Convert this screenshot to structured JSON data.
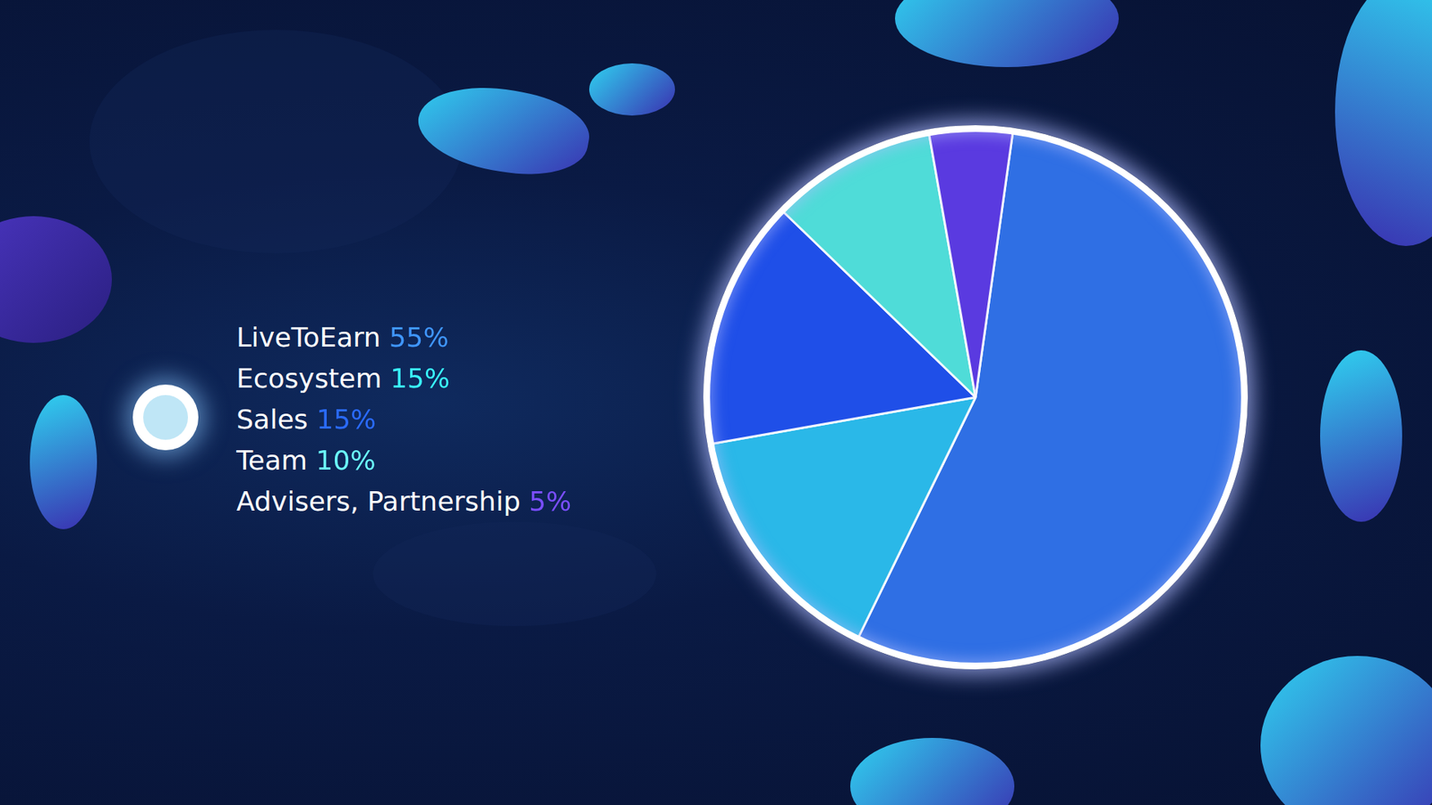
{
  "chart_data": {
    "type": "pie",
    "categories": [
      "LiveToEarn",
      "Ecosystem",
      "Sales",
      "Team",
      "Advisers, Partnership"
    ],
    "values": [
      55,
      15,
      15,
      10,
      5
    ],
    "value_labels": [
      "55%",
      "15%",
      "15%",
      "10%",
      "5%"
    ],
    "colors": [
      "#2f6fe4",
      "#2ab8e8",
      "#1f4fe8",
      "#4fdcd8",
      "#5a3ae0"
    ],
    "legend": "left"
  }
}
